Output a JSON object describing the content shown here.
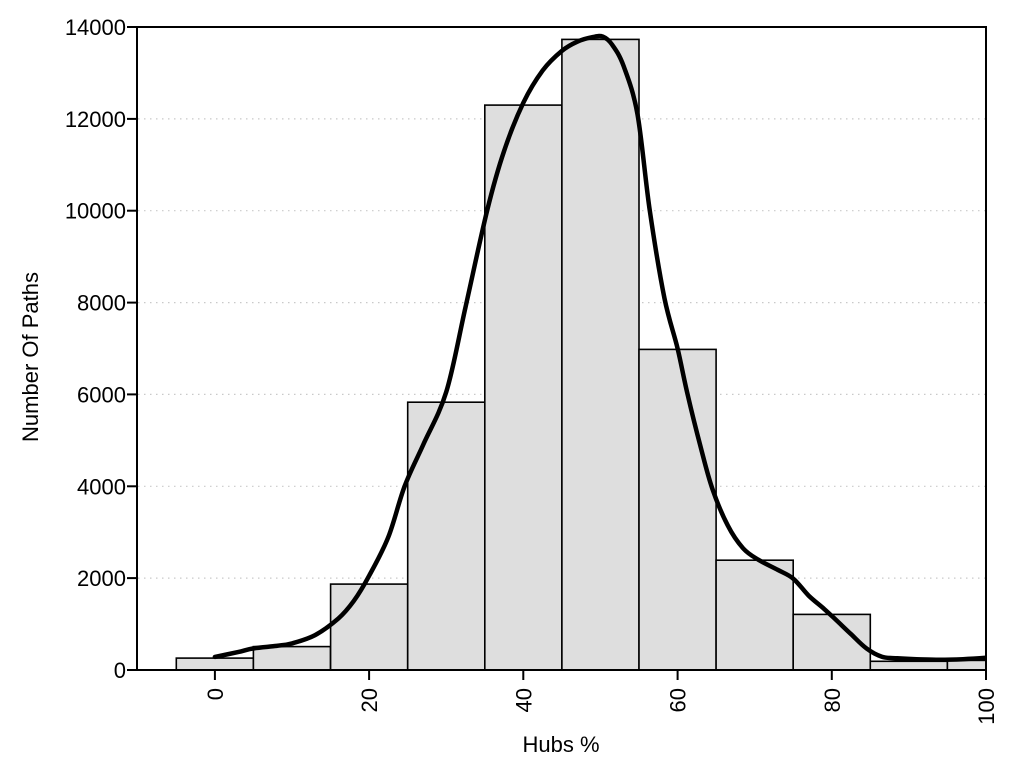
{
  "chart_data": {
    "type": "bar",
    "subtype": "histogram_with_density_curve",
    "title": "",
    "xlabel": "Hubs %",
    "ylabel": "Number Of Paths",
    "x_tick_values": [
      0,
      20,
      40,
      60,
      80,
      100
    ],
    "x_tick_labels": [
      "0",
      "20",
      "40",
      "60",
      "80",
      "100"
    ],
    "x_tick_label_rotation_deg": -90,
    "y_tick_values": [
      0,
      2000,
      4000,
      6000,
      8000,
      10000,
      12000,
      14000
    ],
    "y_tick_labels": [
      "0",
      "2000",
      "4000",
      "6000",
      "8000",
      "10000",
      "12000",
      "14000"
    ],
    "xlim": [
      -10.1,
      100
    ],
    "ylim": [
      0,
      14000
    ],
    "grid": {
      "horizontal_dotted_at": [
        2000,
        4000,
        6000,
        8000,
        10000,
        12000
      ]
    },
    "legend_position": "none",
    "bin_width": 10,
    "last_bin_clipped_at_x": 100,
    "bars": {
      "centers": [
        0,
        10,
        20,
        30,
        40,
        50,
        60,
        70,
        80,
        90,
        100
      ],
      "counts": [
        260,
        510,
        1870,
        5830,
        12300,
        13730,
        6980,
        2390,
        1210,
        190,
        210
      ]
    },
    "density_curve_points": [
      [
        0,
        285
      ],
      [
        3,
        390
      ],
      [
        5,
        470
      ],
      [
        8,
        525
      ],
      [
        10,
        580
      ],
      [
        13,
        760
      ],
      [
        16,
        1120
      ],
      [
        18,
        1500
      ],
      [
        20,
        2050
      ],
      [
        22.5,
        2900
      ],
      [
        24.6,
        4000
      ],
      [
        27,
        4900
      ],
      [
        30,
        6050
      ],
      [
        32.5,
        7900
      ],
      [
        35.3,
        10000
      ],
      [
        37.5,
        11300
      ],
      [
        40,
        12350
      ],
      [
        42.5,
        13050
      ],
      [
        45,
        13480
      ],
      [
        47,
        13680
      ],
      [
        49,
        13780
      ],
      [
        50.3,
        13790
      ],
      [
        51.5,
        13620
      ],
      [
        53,
        13150
      ],
      [
        54.8,
        12100
      ],
      [
        56.4,
        10000
      ],
      [
        58.3,
        8100
      ],
      [
        60,
        7000
      ],
      [
        61.3,
        6000
      ],
      [
        63,
        4850
      ],
      [
        64.5,
        3950
      ],
      [
        66.5,
        3150
      ],
      [
        68.5,
        2650
      ],
      [
        70.5,
        2400
      ],
      [
        73,
        2180
      ],
      [
        75,
        1990
      ],
      [
        77,
        1620
      ],
      [
        79,
        1330
      ],
      [
        80.5,
        1100
      ],
      [
        82.5,
        780
      ],
      [
        84.5,
        470
      ],
      [
        86.5,
        290
      ],
      [
        88.5,
        255
      ],
      [
        91,
        235
      ],
      [
        94,
        225
      ],
      [
        97,
        235
      ],
      [
        100,
        265
      ]
    ],
    "colors": {
      "bar_fill": "#dedede",
      "bar_border": "#000000",
      "curve": "#000000",
      "grid_dotted": "#c9c9c9",
      "frame": "#000000",
      "background": "#ffffff",
      "text": "#000000"
    }
  }
}
